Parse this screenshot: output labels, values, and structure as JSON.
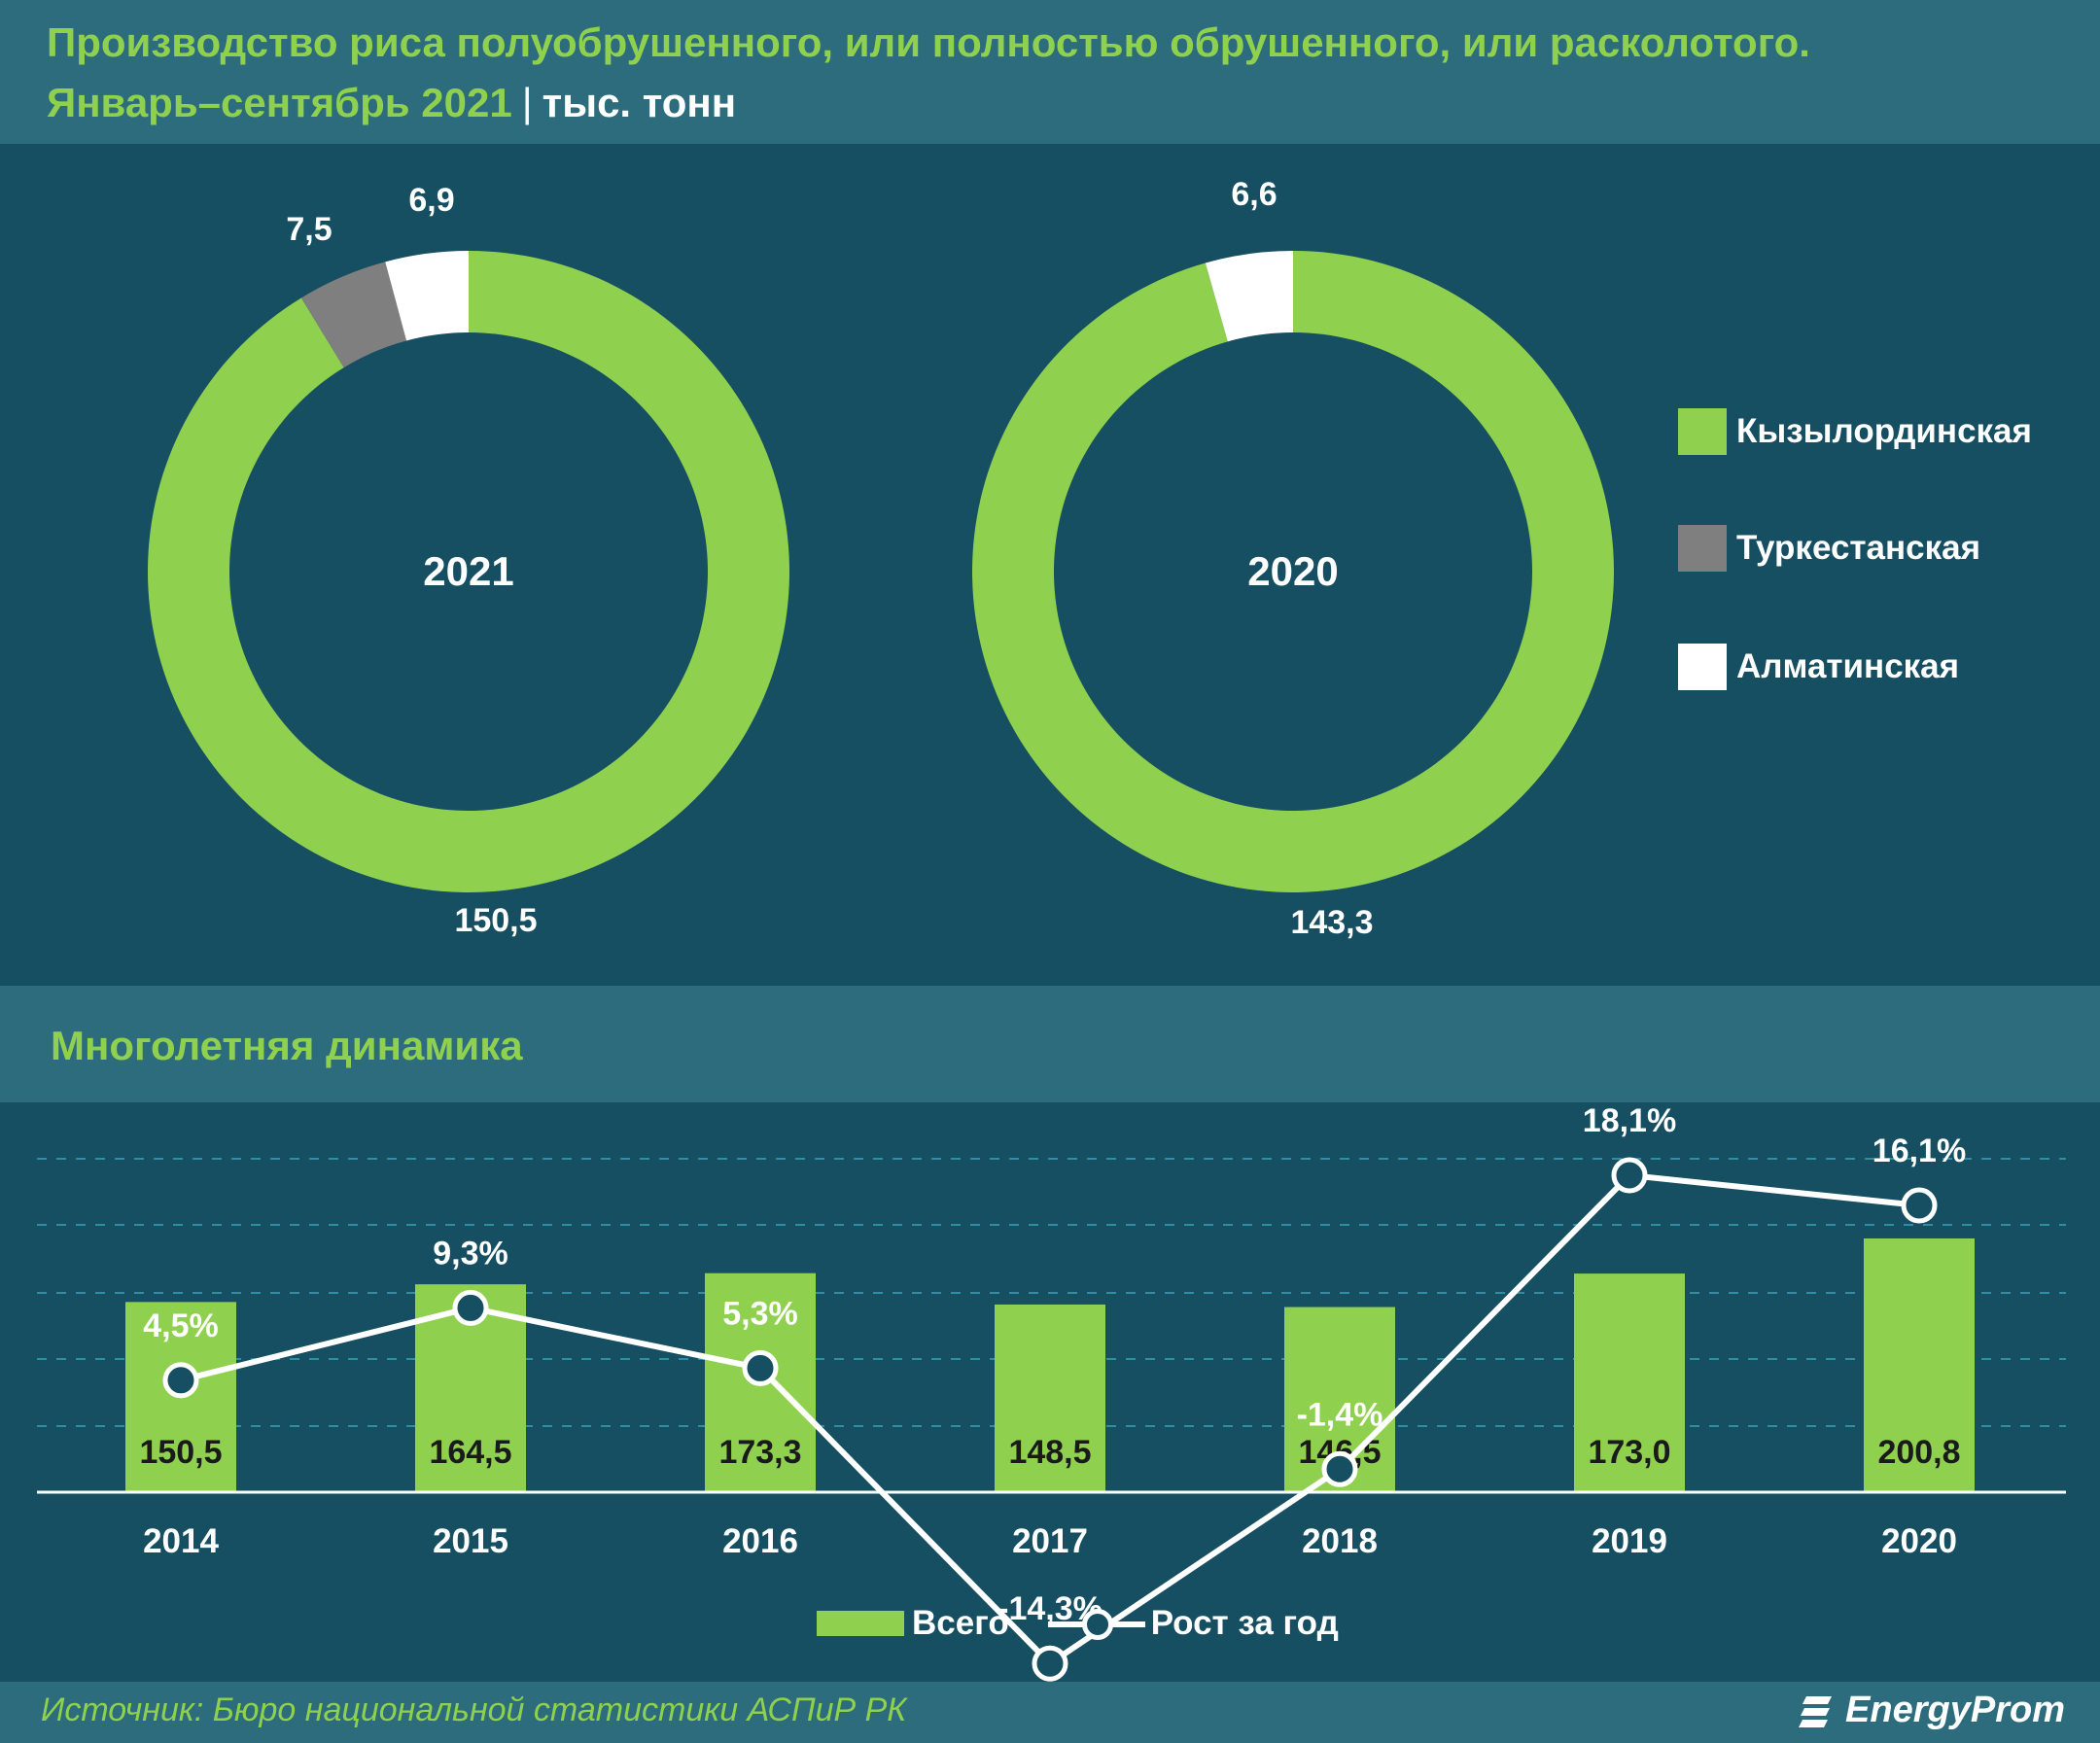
{
  "header": {
    "title_line1": "Производство риса полуобрушенного, или полностью обрушенного, или расколотого.",
    "period": "Январь–сентябрь 2021",
    "separator": "|",
    "unit": "тыс. тонн"
  },
  "dynamics_title": "Многолетняя динамика",
  "source": "Источник: Бюро национальной статистики АСПиР РК",
  "logo": "EnergyProm",
  "colors": {
    "green": "#8fd14f",
    "gray": "#7f7f7f",
    "white": "#ffffff",
    "panel": "#154f61"
  },
  "legend": [
    {
      "label": "Кызылординская",
      "color": "#8fd14f"
    },
    {
      "label": "Туркестанская",
      "color": "#7f7f7f"
    },
    {
      "label": "Алматинская",
      "color": "#ffffff"
    }
  ],
  "bottom_legend": {
    "bar": "Всего",
    "line": "Рост за год"
  },
  "chart_data": [
    {
      "type": "pie",
      "title": "2021",
      "categories": [
        "Кызылординская",
        "Туркестанская",
        "Алматинская"
      ],
      "values": [
        150.5,
        7.5,
        6.9
      ],
      "labels": [
        "150,5",
        "7,5",
        "6,9"
      ]
    },
    {
      "type": "pie",
      "title": "2020",
      "categories": [
        "Кызылординская",
        "Алматинская"
      ],
      "values": [
        143.3,
        6.6
      ],
      "labels": [
        "143,3",
        "6,6"
      ]
    },
    {
      "type": "bar",
      "categories": [
        "2014",
        "2015",
        "2016",
        "2017",
        "2018",
        "2019",
        "2020"
      ],
      "series": [
        {
          "name": "Всего",
          "type": "bar",
          "values": [
            150.5,
            164.5,
            173.3,
            148.5,
            146.5,
            173.0,
            200.8
          ],
          "labels": [
            "150,5",
            "164,5",
            "173,3",
            "148,5",
            "146,5",
            "173,0",
            "200,8"
          ]
        },
        {
          "name": "Рост за год",
          "type": "line",
          "values": [
            4.5,
            9.3,
            5.3,
            -14.3,
            -1.4,
            18.1,
            16.1
          ],
          "labels": [
            "4,5%",
            "9,3%",
            "5,3%",
            "-14,3%",
            "-1,4%",
            "18,1%",
            "16,1%"
          ]
        }
      ]
    }
  ]
}
